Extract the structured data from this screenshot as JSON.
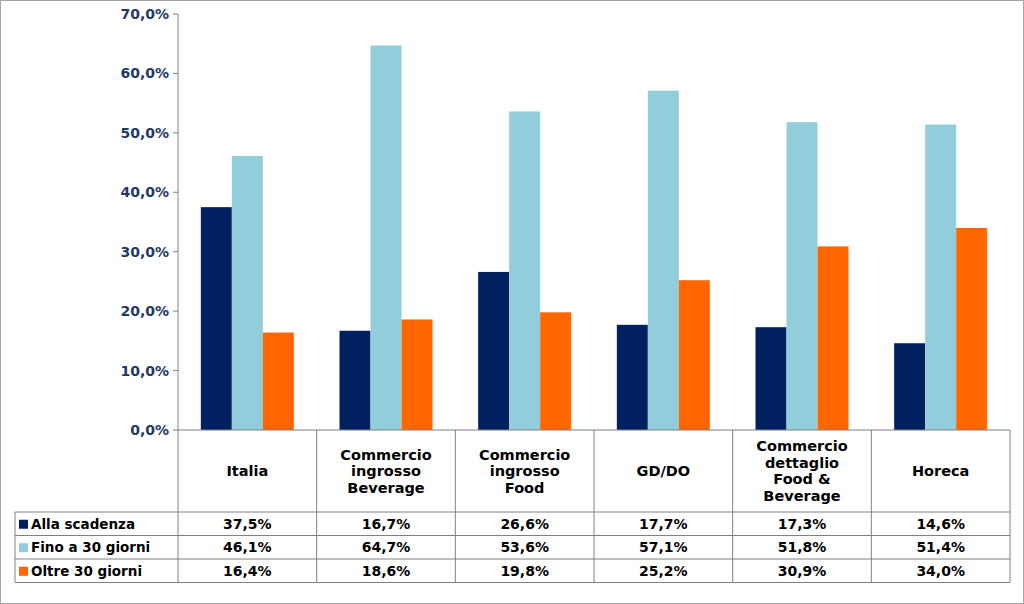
{
  "chart_data": {
    "type": "bar",
    "categories": [
      "Italia",
      "Commercio\ningrosso\nBeverage",
      "Commercio\ningrosso\nFood",
      "GD/DO",
      "Commercio\ndettaglio\nFood &\nBeverage",
      "Horeca"
    ],
    "series": [
      {
        "name": "Alla scadenza",
        "color": "#002060",
        "values": [
          37.5,
          16.7,
          26.6,
          17.7,
          17.3,
          14.6
        ],
        "value_labels": [
          "37,5%",
          "16,7%",
          "26,6%",
          "17,7%",
          "17,3%",
          "14,6%"
        ]
      },
      {
        "name": "Fino a 30 giorni",
        "color": "#92cddc",
        "values": [
          46.1,
          64.7,
          53.6,
          57.1,
          51.8,
          51.4
        ],
        "value_labels": [
          "46,1%",
          "64,7%",
          "53,6%",
          "57,1%",
          "51,8%",
          "51,4%"
        ]
      },
      {
        "name": "Oltre 30 giorni",
        "color": "#ff6600",
        "values": [
          16.4,
          18.6,
          19.8,
          25.2,
          30.9,
          34.0
        ],
        "value_labels": [
          "16,4%",
          "18,6%",
          "19,8%",
          "25,2%",
          "30,9%",
          "34,0%"
        ]
      }
    ],
    "ylim": [
      0,
      70
    ],
    "yticks": [
      {
        "value": 0,
        "label": "0,0%"
      },
      {
        "value": 10,
        "label": "10,0%"
      },
      {
        "value": 20,
        "label": "20,0%"
      },
      {
        "value": 30,
        "label": "30,0%"
      },
      {
        "value": 40,
        "label": "40,0%"
      },
      {
        "value": 50,
        "label": "50,0%"
      },
      {
        "value": 60,
        "label": "60,0%"
      },
      {
        "value": 70,
        "label": "70,0%"
      }
    ],
    "grid": false
  }
}
